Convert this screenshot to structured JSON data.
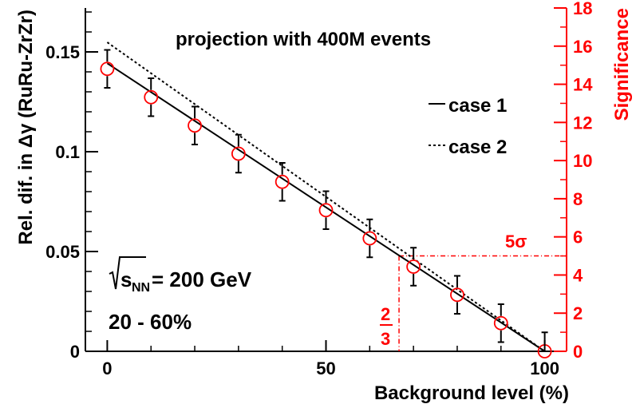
{
  "chart_data": {
    "type": "scatter",
    "annotation_title": "projection with 400M events",
    "energy_label_s": "s",
    "energy_label_sub": "NN",
    "energy_label_value": "= 200 GeV",
    "centrality_label": "20 - 60%",
    "xlabel": "Background level (%)",
    "ylabel_left": "Rel. dif. in Δγ (RuRu-ZrZr)",
    "ylabel_right": "Significance",
    "xlim": [
      -5,
      105
    ],
    "ylim_left": [
      0,
      0.172
    ],
    "ylim_right": [
      0,
      18
    ],
    "x_ticks": [
      "0",
      "50",
      "100"
    ],
    "y_left_ticks": [
      "0",
      "0.05",
      "0.1",
      "0.15"
    ],
    "y_right_ticks": [
      "0",
      "2",
      "4",
      "6",
      "8",
      "10",
      "12",
      "14",
      "16",
      "18"
    ],
    "legend": [
      {
        "name": "case 1",
        "style": "solid"
      },
      {
        "name": "case 2",
        "style": "dashed"
      }
    ],
    "threshold_label": "5σ",
    "fraction_num": "2",
    "fraction_den": "3",
    "points": {
      "x": [
        0,
        10,
        20,
        30,
        40,
        50,
        60,
        70,
        80,
        90,
        100
      ],
      "y": [
        0.1415,
        0.1273,
        0.1131,
        0.099,
        0.0849,
        0.0707,
        0.0566,
        0.0424,
        0.0283,
        0.0141,
        0.0
      ],
      "yerr": [
        0.0095,
        0.0095,
        0.0095,
        0.0095,
        0.0095,
        0.0095,
        0.0095,
        0.0095,
        0.0095,
        0.0095,
        0.0095
      ]
    },
    "series": [
      {
        "name": "case 1",
        "significance": [
          [
            0,
            15.1
          ],
          [
            100,
            0
          ]
        ]
      },
      {
        "name": "case 2",
        "significance": [
          [
            0,
            16.2
          ],
          [
            100,
            0
          ]
        ]
      }
    ],
    "threshold": {
      "significance": 5,
      "x_cross": 66.7
    },
    "colors": {
      "axis": "#000000",
      "right_axis": "#ff0000",
      "marker": "#ff0000",
      "line": "#000000"
    }
  }
}
